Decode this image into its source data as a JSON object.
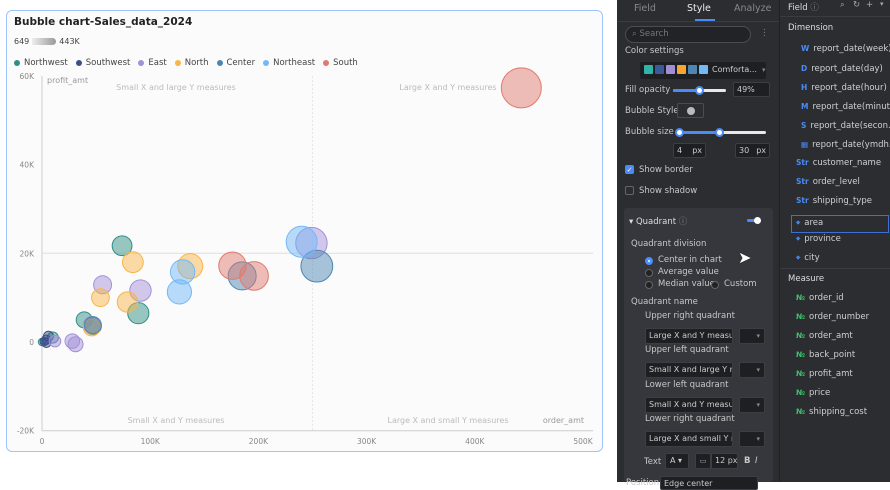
{
  "chart": {
    "title": "Bubble chart-Sales_data_2024",
    "size_legend": {
      "min": "649",
      "max": "443K"
    }
  },
  "chart_data": {
    "type": "scatter",
    "title": "Bubble chart-Sales_data_2024",
    "xlabel": "order_amt",
    "ylabel": "profit_amt",
    "xlim": [
      0,
      500000
    ],
    "ylim": [
      -20000,
      60000
    ],
    "x_ticks": [
      "0",
      "100K",
      "200K",
      "300K",
      "400K",
      "500K"
    ],
    "y_ticks": [
      "-20K",
      "0",
      "20K",
      "40K",
      "60K"
    ],
    "y_tick_values": [
      -20000,
      0,
      20000,
      40000,
      60000
    ],
    "x_tick_values": [
      0,
      100000,
      200000,
      300000,
      400000,
      500000
    ],
    "grid": false,
    "legend_placement": "top-left",
    "size_range": [
      649,
      443000
    ],
    "quadrant_lines": {
      "x": 250000,
      "y": 20000
    },
    "quadrant_labels": {
      "upper_left": "Small X and large Y measures",
      "upper_right": "Large X and Y measures",
      "lower_left": "Small X and Y measures",
      "lower_right": "Large X and small Y measures"
    },
    "series": [
      {
        "name": "Northwest",
        "color": "#2f8f83",
        "points": [
          [
            74000,
            21700,
            74000
          ],
          [
            89000,
            6500,
            89000
          ],
          [
            39000,
            5000,
            39000
          ],
          [
            47000,
            3600,
            47000
          ],
          [
            10000,
            1000,
            10000
          ],
          [
            0,
            0,
            649
          ]
        ]
      },
      {
        "name": "Southwest",
        "color": "#3b4f8c",
        "points": [
          [
            4000,
            500,
            4000
          ],
          [
            6000,
            1300,
            6000
          ],
          [
            4000,
            -200,
            4000
          ],
          [
            2000,
            100,
            2000
          ]
        ]
      },
      {
        "name": "East",
        "color": "#a390d8",
        "points": [
          [
            56000,
            12900,
            56000
          ],
          [
            91000,
            11600,
            91000
          ],
          [
            249000,
            22300,
            249000
          ],
          [
            28000,
            200,
            28000
          ],
          [
            31000,
            -500,
            31000
          ],
          [
            12000,
            200,
            12000
          ],
          [
            46000,
            3800,
            46000
          ]
        ]
      },
      {
        "name": "North",
        "color": "#f8b54a",
        "points": [
          [
            84000,
            18000,
            84000
          ],
          [
            54000,
            10000,
            54000
          ],
          [
            79000,
            9000,
            79000
          ],
          [
            137000,
            17100,
            137000
          ],
          [
            46000,
            3300,
            46000
          ]
        ]
      },
      {
        "name": "Center",
        "color": "#4d86b3",
        "points": [
          [
            185000,
            14900,
            185000
          ],
          [
            254000,
            17100,
            254000
          ],
          [
            47000,
            3800,
            47000
          ]
        ]
      },
      {
        "name": "Northeast",
        "color": "#73b8f7",
        "points": [
          [
            130000,
            15800,
            130000
          ],
          [
            127000,
            11300,
            127000
          ],
          [
            240000,
            22600,
            240000
          ]
        ]
      },
      {
        "name": "South",
        "color": "#e07a6e",
        "points": [
          [
            176000,
            17200,
            176000
          ],
          [
            196000,
            14900,
            196000
          ],
          [
            443000,
            57300,
            443000
          ]
        ]
      }
    ]
  },
  "style_panel": {
    "tabs": [
      "Field",
      "Style",
      "Analyze"
    ],
    "active_tab": "Style",
    "search_placeholder": "Search",
    "color_settings_label": "Color settings",
    "palette_name": "Comforta...",
    "palette_colors": [
      "#2fb5a8",
      "#3b5a9a",
      "#a08fd6",
      "#f7a531",
      "#4d86b3",
      "#73b8f7"
    ],
    "fill_opacity_label": "Fill opacity",
    "fill_opacity_value": "49%",
    "fill_opacity": 0.49,
    "bubble_style_label": "Bubble Style",
    "bubble_size_label": "Bubble size",
    "bubble_min": "4",
    "bubble_max": "30",
    "px": "px",
    "show_border_label": "Show border",
    "show_border": true,
    "show_shadow_label": "Show shadow",
    "show_shadow": false,
    "quadrant_label": "Quadrant",
    "quadrant_enabled": true,
    "quadrant_division_label": "Quadrant division",
    "division_options": [
      "Center in chart",
      "Average value",
      "Median value",
      "Custom"
    ],
    "division_selected": "Center in chart",
    "quadrant_name_label": "Quadrant name",
    "quadrants": [
      {
        "label": "Upper right quadrant",
        "value": "Large X and Y measures"
      },
      {
        "label": "Upper left quadrant",
        "value": "Small X and large Y measures"
      },
      {
        "label": "Lower left quadrant",
        "value": "Small X and Y measures"
      },
      {
        "label": "Lower right quadrant",
        "value": "Large X and small Y measures"
      }
    ],
    "text_label": "Text",
    "font_color": "A",
    "font_size": "12 px",
    "bold": "B",
    "italic": "I",
    "position_label": "Position",
    "position_value": "Edge center"
  },
  "field_panel": {
    "title": "Field",
    "dimension_label": "Dimension",
    "dimensions": [
      {
        "icon": "W",
        "name": "report_date(week)",
        "type": "date"
      },
      {
        "icon": "D",
        "name": "report_date(day)",
        "type": "date"
      },
      {
        "icon": "H",
        "name": "report_date(hour)",
        "type": "date"
      },
      {
        "icon": "M",
        "name": "report_date(minute)",
        "type": "date"
      },
      {
        "icon": "S",
        "name": "report_date(secon...",
        "type": "date"
      },
      {
        "icon": "▦",
        "name": "report_date(ymdh...",
        "type": "date"
      },
      {
        "icon": "Str",
        "name": "customer_name",
        "type": "str"
      },
      {
        "icon": "Str",
        "name": "order_level",
        "type": "str"
      },
      {
        "icon": "Str",
        "name": "shipping_type",
        "type": "str"
      },
      {
        "icon": "⌖",
        "name": "area",
        "type": "geo"
      },
      {
        "icon": "⌖",
        "name": "province",
        "type": "geo"
      },
      {
        "icon": "⌖",
        "name": "city",
        "type": "geo"
      }
    ],
    "selected": "area",
    "measure_label": "Measure",
    "measures": [
      "order_id",
      "order_number",
      "order_amt",
      "back_point",
      "profit_amt",
      "price",
      "shipping_cost"
    ],
    "measure_icon": "№"
  }
}
